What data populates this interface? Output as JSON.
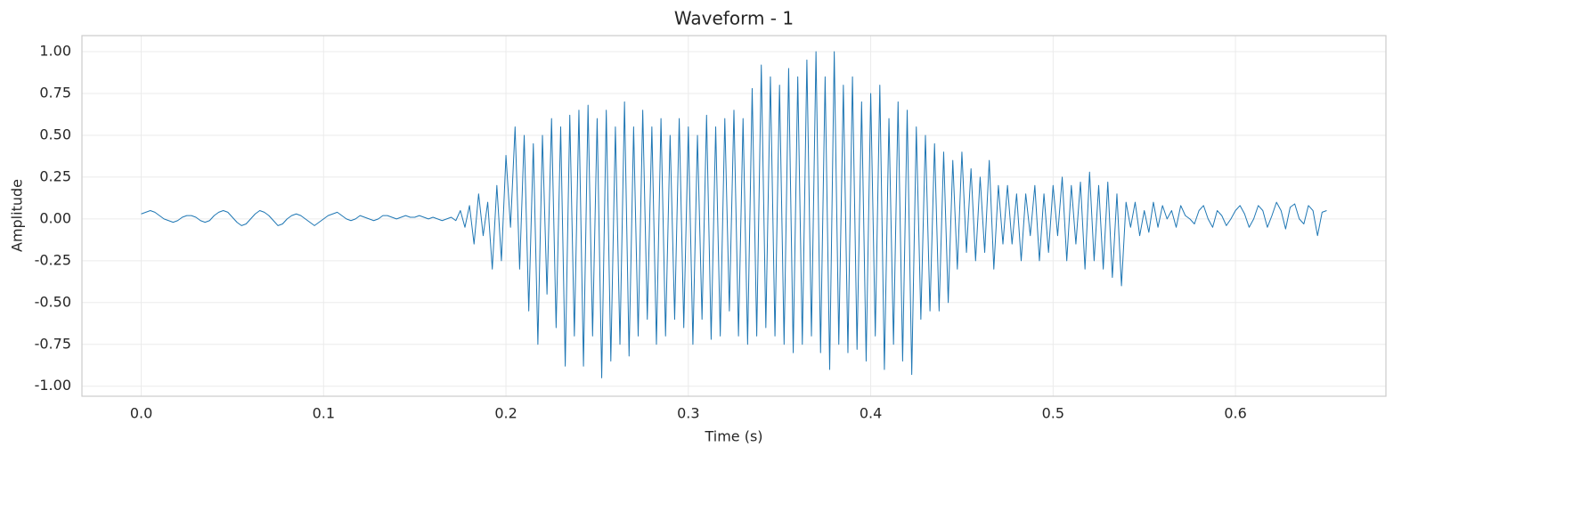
{
  "chart_data": {
    "type": "line",
    "title": "Waveform - 1",
    "x_label": "Time (s)",
    "y_label": "Amplitude",
    "color": "#1f77b4",
    "grid": true,
    "xlim": [
      -0.0325,
      0.6825
    ],
    "ylim": [
      -1.06,
      1.096
    ],
    "xticks": [
      {
        "value": 0,
        "label": "0.0"
      },
      0.1,
      0.2,
      0.3,
      0.4,
      0.5,
      0.6
    ],
    "yticks": [
      {
        "value": -1,
        "label": "-1.00"
      },
      -0.75,
      {
        "value": -0.5,
        "label": "-0.50"
      },
      -0.25,
      {
        "value": 0,
        "label": "0.00"
      },
      0.25,
      {
        "value": 0.5,
        "label": "0.50"
      },
      0.75,
      {
        "value": 1,
        "label": "1.00"
      }
    ],
    "x": [
      0,
      0.0025,
      0.005,
      0.0075,
      0.01,
      0.0125,
      0.015,
      0.0175,
      0.02,
      0.0225,
      0.025,
      0.0275,
      0.03,
      0.0325,
      0.035,
      0.0375,
      0.04,
      0.0425,
      0.045,
      0.0475,
      0.05,
      0.0525,
      0.055,
      0.0575,
      0.06,
      0.0625,
      0.065,
      0.0675,
      0.07,
      0.0725,
      0.075,
      0.0775,
      0.08,
      0.0825,
      0.085,
      0.0875,
      0.09,
      0.0925,
      0.095,
      0.0975,
      0.1,
      0.1025,
      0.105,
      0.1075,
      0.11,
      0.1125,
      0.115,
      0.1175,
      0.12,
      0.1225,
      0.125,
      0.1275,
      0.13,
      0.1325,
      0.135,
      0.1375,
      0.14,
      0.1425,
      0.145,
      0.1475,
      0.15,
      0.1525,
      0.155,
      0.1575,
      0.16,
      0.1625,
      0.165,
      0.1675,
      0.17,
      0.1725,
      0.175,
      0.1775,
      0.18,
      0.1825,
      0.185,
      0.1875,
      0.19,
      0.1925,
      0.195,
      0.1975,
      0.2,
      0.2025,
      0.205,
      0.2075,
      0.21,
      0.2125,
      0.215,
      0.2175,
      0.22,
      0.2225,
      0.225,
      0.2275,
      0.23,
      0.2325,
      0.235,
      0.2375,
      0.24,
      0.2425,
      0.245,
      0.2475,
      0.25,
      0.2525,
      0.255,
      0.2575,
      0.26,
      0.2625,
      0.265,
      0.2675,
      0.27,
      0.2725,
      0.275,
      0.2775,
      0.28,
      0.2825,
      0.285,
      0.2875,
      0.29,
      0.2925,
      0.295,
      0.2975,
      0.3,
      0.3025,
      0.305,
      0.3075,
      0.31,
      0.3125,
      0.315,
      0.3175,
      0.32,
      0.3225,
      0.325,
      0.3275,
      0.33,
      0.3325,
      0.335,
      0.3375,
      0.34,
      0.3425,
      0.345,
      0.3475,
      0.35,
      0.3525,
      0.355,
      0.3575,
      0.36,
      0.3625,
      0.365,
      0.3675,
      0.37,
      0.3725,
      0.375,
      0.3775,
      0.38,
      0.3825,
      0.385,
      0.3875,
      0.39,
      0.3925,
      0.395,
      0.3975,
      0.4,
      0.4025,
      0.405,
      0.4075,
      0.41,
      0.4125,
      0.415,
      0.4175,
      0.42,
      0.4225,
      0.425,
      0.4275,
      0.43,
      0.4325,
      0.435,
      0.4375,
      0.44,
      0.4425,
      0.445,
      0.4475,
      0.45,
      0.4525,
      0.455,
      0.4575,
      0.46,
      0.4625,
      0.465,
      0.4675,
      0.47,
      0.4725,
      0.475,
      0.4775,
      0.48,
      0.4825,
      0.485,
      0.4875,
      0.49,
      0.4925,
      0.495,
      0.4975,
      0.5,
      0.5025,
      0.505,
      0.5075,
      0.51,
      0.5125,
      0.515,
      0.5175,
      0.52,
      0.5225,
      0.525,
      0.5275,
      0.53,
      0.5325,
      0.535,
      0.5375,
      0.54,
      0.5425,
      0.545,
      0.5475,
      0.55,
      0.5525,
      0.555,
      0.5575,
      0.56,
      0.5625,
      0.565,
      0.5675,
      0.57,
      0.5725,
      0.575,
      0.5775,
      0.58,
      0.5825,
      0.585,
      0.5875,
      0.59,
      0.5925,
      0.595,
      0.5975,
      0.6,
      0.6025,
      0.605,
      0.6075,
      0.61,
      0.6125,
      0.615,
      0.6175,
      0.62,
      0.6225,
      0.625,
      0.6275,
      0.63,
      0.6325,
      0.635,
      0.6375,
      0.64,
      0.6425,
      0.645,
      0.6475,
      0.65
    ],
    "values": [
      0.03,
      0.04,
      0.05,
      0.04,
      0.02,
      0.0,
      -0.01,
      -0.02,
      -0.01,
      0.01,
      0.02,
      0.02,
      0.01,
      -0.01,
      -0.02,
      -0.01,
      0.02,
      0.04,
      0.05,
      0.04,
      0.01,
      -0.02,
      -0.04,
      -0.03,
      0.0,
      0.03,
      0.05,
      0.04,
      0.02,
      -0.01,
      -0.04,
      -0.03,
      0.0,
      0.02,
      0.03,
      0.02,
      0.0,
      -0.02,
      -0.04,
      -0.02,
      0.0,
      0.02,
      0.03,
      0.04,
      0.02,
      0.0,
      -0.01,
      0.0,
      0.02,
      0.01,
      0.0,
      -0.01,
      0.0,
      0.02,
      0.02,
      0.01,
      0.0,
      0.01,
      0.02,
      0.01,
      0.01,
      0.02,
      0.01,
      0.0,
      0.01,
      0.0,
      -0.01,
      0.0,
      0.01,
      -0.01,
      0.05,
      -0.05,
      0.08,
      -0.15,
      0.15,
      -0.1,
      0.1,
      -0.3,
      0.2,
      -0.25,
      0.38,
      -0.05,
      0.55,
      -0.3,
      0.5,
      -0.55,
      0.45,
      -0.75,
      0.5,
      -0.45,
      0.6,
      -0.65,
      0.55,
      -0.88,
      0.62,
      -0.7,
      0.65,
      -0.88,
      0.68,
      -0.7,
      0.6,
      -0.95,
      0.65,
      -0.85,
      0.55,
      -0.75,
      0.7,
      -0.82,
      0.55,
      -0.7,
      0.65,
      -0.6,
      0.55,
      -0.75,
      0.6,
      -0.7,
      0.5,
      -0.6,
      0.6,
      -0.65,
      0.55,
      -0.75,
      0.5,
      -0.6,
      0.62,
      -0.72,
      0.55,
      -0.7,
      0.6,
      -0.55,
      0.65,
      -0.7,
      0.6,
      -0.75,
      0.78,
      -0.7,
      0.92,
      -0.65,
      0.85,
      -0.7,
      0.8,
      -0.75,
      0.9,
      -0.8,
      0.85,
      -0.75,
      0.95,
      -0.7,
      1.0,
      -0.8,
      0.85,
      -0.9,
      1.0,
      -0.75,
      0.8,
      -0.8,
      0.85,
      -0.78,
      0.7,
      -0.85,
      0.75,
      -0.7,
      0.8,
      -0.9,
      0.6,
      -0.75,
      0.7,
      -0.85,
      0.65,
      -0.93,
      0.55,
      -0.6,
      0.5,
      -0.55,
      0.45,
      -0.55,
      0.4,
      -0.5,
      0.35,
      -0.3,
      0.4,
      -0.2,
      0.3,
      -0.25,
      0.25,
      -0.2,
      0.35,
      -0.3,
      0.2,
      -0.15,
      0.2,
      -0.15,
      0.15,
      -0.25,
      0.15,
      -0.1,
      0.2,
      -0.25,
      0.15,
      -0.2,
      0.2,
      -0.1,
      0.25,
      -0.25,
      0.2,
      -0.15,
      0.22,
      -0.3,
      0.28,
      -0.25,
      0.2,
      -0.3,
      0.22,
      -0.35,
      0.15,
      -0.4,
      0.1,
      -0.05,
      0.1,
      -0.1,
      0.05,
      -0.08,
      0.1,
      -0.05,
      0.08,
      0.0,
      0.05,
      -0.05,
      0.08,
      0.02,
      0.0,
      -0.03,
      0.05,
      0.08,
      0.0,
      -0.05,
      0.05,
      0.02,
      -0.04,
      0.0,
      0.05,
      0.08,
      0.03,
      -0.05,
      0.0,
      0.08,
      0.05,
      -0.05,
      0.02,
      0.1,
      0.05,
      -0.06,
      0.07,
      0.09,
      0.0,
      -0.03,
      0.08,
      0.05,
      -0.1,
      0.04,
      0.05
    ]
  }
}
